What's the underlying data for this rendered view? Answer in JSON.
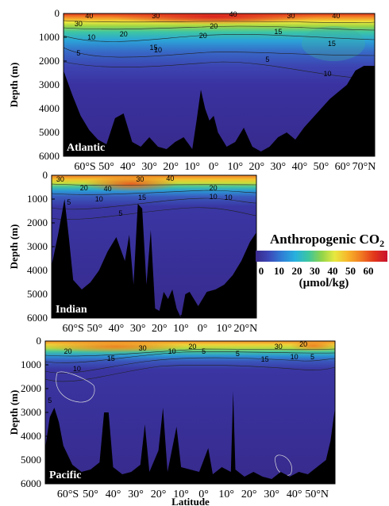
{
  "chart_data": [
    {
      "type": "heatmap",
      "name": "atlantic",
      "basin_label": "Atlantic",
      "ylabel": "Depth (m)",
      "yticks": [
        "0",
        "1000",
        "2000",
        "3000",
        "4000",
        "5000",
        "6000"
      ],
      "xticks": [
        "60°S",
        "50°",
        "40°",
        "30°",
        "20°",
        "10°",
        "0°",
        "10°",
        "20°",
        "30°",
        "40°",
        "50°",
        "60°",
        "70°N"
      ],
      "xlim": [
        -70,
        75
      ],
      "ylim": [
        0,
        6000
      ],
      "contour_labels": [
        "40",
        "30",
        "40",
        "30",
        "40",
        "10",
        "20",
        "30",
        "15",
        "20",
        "15",
        "20",
        "5",
        "10",
        "5",
        "10",
        "15"
      ],
      "seafloor_depth_profile": [
        [
          -70,
          2400
        ],
        [
          -66,
          3400
        ],
        [
          -62,
          4300
        ],
        [
          -58,
          4900
        ],
        [
          -54,
          5300
        ],
        [
          -50,
          5500
        ],
        [
          -46,
          4400
        ],
        [
          -42,
          4200
        ],
        [
          -38,
          5400
        ],
        [
          -34,
          5600
        ],
        [
          -30,
          5200
        ],
        [
          -26,
          5600
        ],
        [
          -22,
          5700
        ],
        [
          -18,
          5400
        ],
        [
          -14,
          5200
        ],
        [
          -10,
          5700
        ],
        [
          -8,
          4500
        ],
        [
          -6,
          3200
        ],
        [
          -4,
          4000
        ],
        [
          -2,
          4500
        ],
        [
          0,
          4300
        ],
        [
          2,
          5000
        ],
        [
          6,
          5600
        ],
        [
          10,
          5400
        ],
        [
          14,
          4800
        ],
        [
          18,
          5600
        ],
        [
          22,
          5800
        ],
        [
          26,
          5600
        ],
        [
          30,
          5200
        ],
        [
          34,
          5000
        ],
        [
          38,
          5300
        ],
        [
          42,
          4800
        ],
        [
          46,
          4400
        ],
        [
          50,
          4000
        ],
        [
          54,
          3600
        ],
        [
          58,
          3300
        ],
        [
          62,
          3000
        ],
        [
          66,
          2400
        ],
        [
          70,
          2200
        ],
        [
          75,
          2200
        ]
      ]
    },
    {
      "type": "heatmap",
      "name": "indian",
      "basin_label": "Indian",
      "ylabel": "Depth (m)",
      "yticks": [
        "0",
        "1000",
        "2000",
        "3000",
        "4000",
        "5000",
        "6000"
      ],
      "xticks": [
        "60°S",
        "50°",
        "40°",
        "30°",
        "20°",
        "10°",
        "0°",
        "10°",
        "20°N"
      ],
      "xlim": [
        -70,
        25
      ],
      "ylim": [
        0,
        6000
      ],
      "contour_labels": [
        "30",
        "20",
        "40",
        "30",
        "40",
        "10",
        "15",
        "20",
        "5",
        "10",
        "5",
        "10"
      ],
      "seafloor_depth_profile": [
        [
          -70,
          3800
        ],
        [
          -67,
          2500
        ],
        [
          -64,
          1000
        ],
        [
          -62,
          2600
        ],
        [
          -60,
          4400
        ],
        [
          -56,
          4800
        ],
        [
          -52,
          4500
        ],
        [
          -48,
          4000
        ],
        [
          -44,
          3200
        ],
        [
          -40,
          2600
        ],
        [
          -36,
          3600
        ],
        [
          -34,
          2500
        ],
        [
          -32,
          4600
        ],
        [
          -30,
          1200
        ],
        [
          -28,
          1400
        ],
        [
          -26,
          4600
        ],
        [
          -24,
          2300
        ],
        [
          -22,
          5600
        ],
        [
          -20,
          5700
        ],
        [
          -18,
          4900
        ],
        [
          -16,
          5200
        ],
        [
          -14,
          4800
        ],
        [
          -12,
          5600
        ],
        [
          -10,
          6000
        ],
        [
          -8,
          5000
        ],
        [
          -6,
          4900
        ],
        [
          -2,
          5500
        ],
        [
          2,
          4900
        ],
        [
          6,
          4800
        ],
        [
          10,
          4600
        ],
        [
          14,
          4200
        ],
        [
          18,
          3600
        ],
        [
          22,
          2800
        ],
        [
          25,
          2400
        ]
      ]
    },
    {
      "type": "heatmap",
      "name": "pacific",
      "basin_label": "Pacific",
      "ylabel": "Depth (m)",
      "xlabel": "Latitude",
      "yticks": [
        "0",
        "1000",
        "2000",
        "3000",
        "4000",
        "5000",
        "6000"
      ],
      "xticks": [
        "60°S",
        "50°",
        "40°",
        "30°",
        "20°",
        "10°",
        "0°",
        "10°",
        "20°",
        "30°",
        "40°",
        "50°N"
      ],
      "xlim": [
        -70,
        58
      ],
      "ylim": [
        0,
        6000
      ],
      "contour_labels": [
        "20",
        "10",
        "15",
        "30",
        "20",
        "10",
        "5",
        "5",
        "30",
        "15",
        "20",
        "10",
        "5",
        "5"
      ],
      "seafloor_depth_profile": [
        [
          -70,
          4500
        ],
        [
          -68,
          3200
        ],
        [
          -66,
          2800
        ],
        [
          -64,
          3400
        ],
        [
          -62,
          4400
        ],
        [
          -58,
          5200
        ],
        [
          -54,
          5500
        ],
        [
          -50,
          5400
        ],
        [
          -46,
          5100
        ],
        [
          -44,
          3000
        ],
        [
          -42,
          3000
        ],
        [
          -40,
          5300
        ],
        [
          -36,
          5600
        ],
        [
          -32,
          5500
        ],
        [
          -28,
          5200
        ],
        [
          -26,
          3500
        ],
        [
          -24,
          5500
        ],
        [
          -20,
          4600
        ],
        [
          -18,
          2800
        ],
        [
          -16,
          5500
        ],
        [
          -12,
          3600
        ],
        [
          -10,
          5300
        ],
        [
          -6,
          5400
        ],
        [
          -2,
          5500
        ],
        [
          2,
          4500
        ],
        [
          4,
          5600
        ],
        [
          8,
          5300
        ],
        [
          12,
          5500
        ],
        [
          13,
          2100
        ],
        [
          14,
          5400
        ],
        [
          18,
          5700
        ],
        [
          22,
          5500
        ],
        [
          26,
          5700
        ],
        [
          30,
          5800
        ],
        [
          34,
          5500
        ],
        [
          38,
          5700
        ],
        [
          42,
          5500
        ],
        [
          46,
          5600
        ],
        [
          50,
          5300
        ],
        [
          54,
          5000
        ],
        [
          56,
          4200
        ],
        [
          58,
          2800
        ]
      ]
    }
  ],
  "colorbar": {
    "title": "Anthropogenic CO",
    "title_subscript": "2",
    "ticks": [
      "0",
      "10",
      "20",
      "30",
      "40",
      "50",
      "60"
    ],
    "unit": "(µmol/kg)",
    "colors": [
      "#3a2a8c",
      "#3b48b8",
      "#2f7fd6",
      "#27b0de",
      "#3cc6a0",
      "#8fd44a",
      "#e8e840",
      "#f7b52a",
      "#f17a22",
      "#e2361c",
      "#c8102e"
    ]
  }
}
